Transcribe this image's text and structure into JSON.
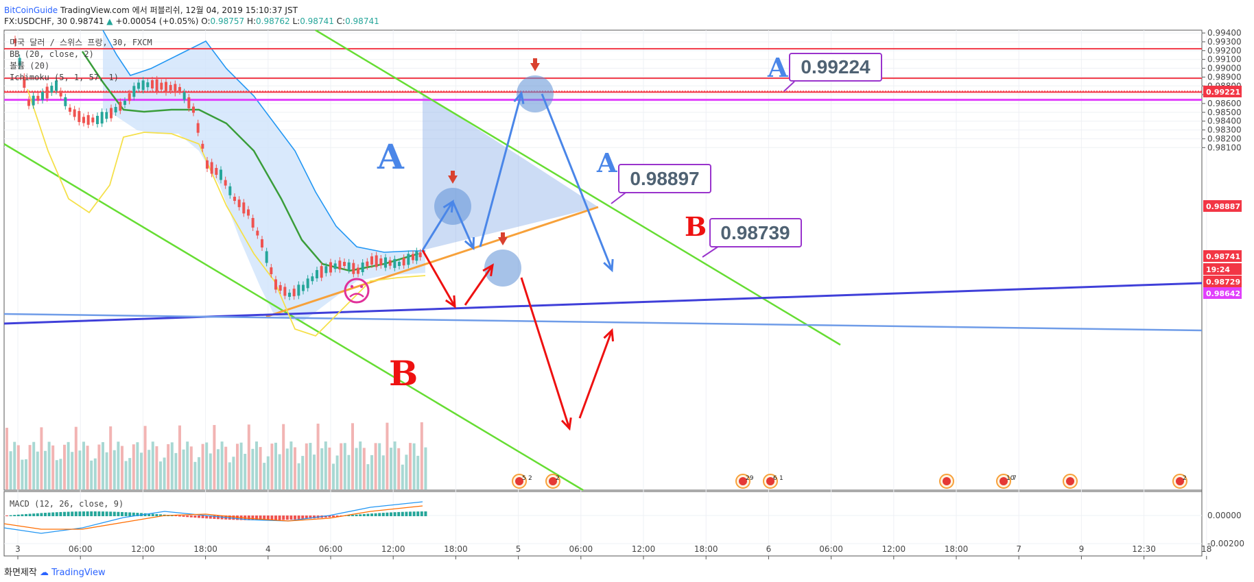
{
  "header": {
    "source": "BitCoinGuide",
    "published": "TradingView.com 에서 퍼블리쉬, 12월 04, 2019 15:10:37 JST",
    "symbol": "FX:USDCHF, 30",
    "last": "0.98741",
    "change": "+0.00054 (+0.05%)",
    "open_label": "O:",
    "open": "0.98757",
    "high_label": "H:",
    "high": "0.98762",
    "low_label": "L:",
    "low": "0.98741",
    "close_label": "C:",
    "close": "0.98741"
  },
  "legend": {
    "line1": "미국 달러 / 스위스 프랑, 30, FXCM",
    "line2": "BB (20, close, 2)",
    "line3": "볼륨 (20)",
    "line4": "Ichimoku (5, 1, 57, 1)"
  },
  "macd_legend": "MACD (12, 26, close, 9)",
  "footer": {
    "text": "화면제작",
    "brand": "TradingView"
  },
  "colors": {
    "up": "#26a69a",
    "down": "#ef5350",
    "accent_blue": "#2962ff",
    "level_red": "#f23645",
    "magenta": "#e040fb",
    "green_trend": "#66dd33",
    "orange_trend": "#f7a13a",
    "arrow_blue": "#4a86e8",
    "arrow_red": "#ee1111"
  },
  "annotations": {
    "a_big": "A",
    "b_big": "B",
    "box_top": {
      "letter": "A",
      "value": "0.99224"
    },
    "box_mid": {
      "letter": "A",
      "value": "0.98897"
    },
    "box_low": {
      "letter": "B",
      "value": "0.98739"
    }
  },
  "chart_data": {
    "type": "candlestick",
    "ylim": [
      0.9799,
      0.9942
    ],
    "price_ticks": [
      "0.99400",
      "0.99300",
      "0.99200",
      "0.99100",
      "0.99000",
      "0.98900",
      "0.98800",
      "0.98700",
      "0.98600",
      "0.98500",
      "0.98400",
      "0.98300",
      "0.98200",
      "0.98100"
    ],
    "macd_ticks": [
      "0.00000",
      "-0.00200"
    ],
    "x_tick_labels": [
      "3",
      "06:00",
      "12:00",
      "18:00",
      "4",
      "06:00",
      "12:00",
      "18:00",
      "5",
      "06:00",
      "12:00",
      "18:00",
      "6",
      "06:00",
      "12:00",
      "18:00",
      "7",
      "9",
      "12:30",
      "18"
    ],
    "price_labels": [
      {
        "value": "0.99221",
        "bg": "#f23645"
      },
      {
        "value": "0.98887",
        "bg": "#f23645"
      },
      {
        "value": "0.98741",
        "bg": "#f23645"
      },
      {
        "value": "19:24",
        "bg": "#f23645"
      },
      {
        "value": "0.98729",
        "bg": "#f23645"
      },
      {
        "value": "0.98642",
        "bg": "#e040fb"
      }
    ],
    "horizontal_levels": [
      0.99221,
      0.98887,
      0.98729,
      0.98642
    ],
    "event_markers": [
      {
        "badge": "5",
        "badge2": "2"
      },
      {
        "badge": "2"
      },
      {
        "badge": "29"
      },
      {
        "badge": "6",
        "badge2": "1"
      },
      {
        "badge": ""
      },
      {
        "badge": "10",
        "badge2": "7"
      },
      {
        "badge": ""
      },
      {
        "badge": "2"
      }
    ]
  }
}
